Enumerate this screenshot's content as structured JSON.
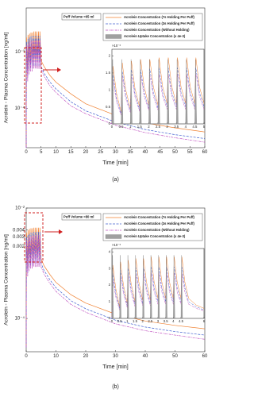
{
  "chart_data": [
    {
      "type": "line",
      "caption": "(a)",
      "annotation": "Puff Volume =65 ml",
      "x_label": "Time [min]",
      "y_label": "Acrolein - Plasma Concentration [ng/ml]",
      "log_y": true,
      "x": [
        0,
        0.1,
        0.5,
        0.6,
        1,
        1.1,
        1.5,
        1.6,
        2,
        2.1,
        2.5,
        2.6,
        3,
        3.1,
        3.5,
        3.6,
        4,
        4.1,
        4.5,
        4.6,
        5,
        6,
        8,
        10,
        15,
        20,
        30,
        40,
        50,
        60
      ],
      "xlim": [
        0,
        60
      ],
      "xticks": [
        0,
        5,
        10,
        15,
        20,
        25,
        30,
        35,
        40,
        45,
        50,
        55,
        60
      ],
      "ylim": [
        2e-05,
        0.006
      ],
      "yticks": [
        {
          "value": 0.001,
          "label": "10⁻³"
        },
        {
          "value": 0.0001,
          "label": "10⁻⁴"
        }
      ],
      "series": [
        {
          "color": "#f08030",
          "dash": "solid",
          "values": [
            2e-05,
            0.0018,
            0.0004,
            0.002,
            0.0005,
            0.0021,
            0.0006,
            0.0022,
            0.0006,
            0.0022,
            0.0007,
            0.0023,
            0.0007,
            0.0023,
            0.0007,
            0.0023,
            0.0007,
            0.0023,
            0.0007,
            0.0023,
            0.0007,
            0.00055,
            0.00038,
            0.00029,
            0.00018,
            0.00012,
            7.5e-05,
            5.5e-05,
            4.5e-05,
            3.8e-05
          ]
        },
        {
          "color": "#4060d0",
          "dash": "dashed",
          "values": [
            2e-05,
            0.0015,
            0.00035,
            0.0017,
            0.00045,
            0.0018,
            0.0005,
            0.0019,
            0.0005,
            0.0019,
            0.00055,
            0.0019,
            0.00055,
            0.0019,
            0.00055,
            0.0019,
            0.00055,
            0.0019,
            0.00055,
            0.0019,
            0.00055,
            0.00042,
            0.00029,
            0.00022,
            0.00013,
            9e-05,
            5.7e-05,
            4.2e-05,
            3.4e-05,
            2.9e-05
          ]
        },
        {
          "color": "#c050c0",
          "dash": "dashdot",
          "values": [
            2e-05,
            0.0013,
            0.0003,
            0.0014,
            0.0004,
            0.0015,
            0.00045,
            0.0016,
            0.00045,
            0.0016,
            0.0005,
            0.0016,
            0.0005,
            0.0016,
            0.0005,
            0.0016,
            0.0005,
            0.0016,
            0.0005,
            0.0016,
            0.0005,
            0.00037,
            0.00025,
            0.00019,
            0.00011,
            8e-05,
            5e-05,
            3.7e-05,
            3e-05,
            2.5e-05
          ]
        }
      ],
      "inset": {
        "type": "line",
        "y_multiplier": "×10⁻³",
        "x": [
          0,
          0.06,
          0.25,
          0.5,
          0.56,
          0.75,
          1,
          1.06,
          1.25,
          1.5,
          1.56,
          1.75,
          2,
          2.06,
          2.25,
          2.5,
          2.56,
          2.75,
          3,
          3.06,
          3.25,
          3.5,
          3.56,
          3.75,
          4,
          4.06,
          4.25,
          4.5,
          4.56,
          4.75,
          5
        ],
        "xlim": [
          0,
          5
        ],
        "xticks": [
          0,
          0.5,
          1,
          1.5,
          2,
          2.5,
          3,
          3.5,
          4,
          4.5,
          5
        ],
        "ylim": [
          0,
          2.2
        ],
        "yticks": [
          0,
          0.5,
          1,
          1.5,
          2
        ],
        "series": [
          {
            "name": "Acrolein Concentration (7s Holding Per Puff)",
            "color": "#f08030",
            "dash": "solid",
            "values": [
              0,
              1.7,
              0.9,
              0.35,
              1.8,
              1.0,
              0.45,
              1.85,
              1.05,
              0.5,
              1.9,
              1.1,
              0.55,
              1.9,
              1.1,
              0.55,
              1.95,
              1.1,
              0.6,
              1.95,
              1.1,
              0.6,
              1.95,
              1.1,
              0.6,
              1.95,
              1.1,
              0.6,
              1.95,
              1.1,
              0.6
            ]
          },
          {
            "name": "Acrolein Concentration (3s Holding Per Puff)",
            "color": "#4060d0",
            "dash": "dashed",
            "values": [
              0,
              1.45,
              0.75,
              0.3,
              1.55,
              0.85,
              0.38,
              1.6,
              0.9,
              0.42,
              1.6,
              0.93,
              0.46,
              1.62,
              0.93,
              0.46,
              1.65,
              0.93,
              0.5,
              1.65,
              0.93,
              0.5,
              1.65,
              0.93,
              0.5,
              1.65,
              0.93,
              0.5,
              1.65,
              0.93,
              0.5
            ]
          },
          {
            "name": "Acrolein Concentration (Without Holding)",
            "color": "#c050c0",
            "dash": "dashdot",
            "values": [
              0,
              1.3,
              0.65,
              0.25,
              1.4,
              0.75,
              0.33,
              1.42,
              0.8,
              0.37,
              1.45,
              0.82,
              0.4,
              1.45,
              0.82,
              0.4,
              1.47,
              0.82,
              0.43,
              1.47,
              0.82,
              0.43,
              1.47,
              0.82,
              0.43,
              1.47,
              0.82,
              0.43,
              1.47,
              0.82,
              0.43
            ]
          },
          {
            "name": "Acrolein Uptake Concentration (x 4e-3)",
            "color": "#a0a0a0",
            "dash": "area",
            "x": [
              0,
              0.04,
              0.1,
              0.5,
              0.54,
              0.6,
              1,
              1.04,
              1.1,
              1.5,
              1.54,
              1.6,
              2,
              2.04,
              2.1,
              2.5,
              2.54,
              2.6,
              3,
              3.04,
              3.1,
              3.5,
              3.54,
              3.6,
              4,
              4.04,
              4.1,
              4.5,
              4.54,
              4.6
            ],
            "values": [
              0,
              1.9,
              0,
              0,
              1.9,
              0,
              0,
              1.9,
              0,
              0,
              1.9,
              0,
              0,
              1.9,
              0,
              0,
              1.9,
              0,
              0,
              1.9,
              0,
              0,
              1.9,
              0,
              0,
              1.9,
              0,
              0,
              1.9,
              0
            ]
          }
        ]
      }
    },
    {
      "type": "line",
      "caption": "(b)",
      "annotation": "Puff Volume =80 ml",
      "x_label": "Time [min]",
      "y_label": "Acrolein - Plasma Concentration [ng/ml]",
      "log_y": true,
      "x": [
        0,
        0.1,
        0.5,
        0.6,
        1,
        1.1,
        1.5,
        1.6,
        2,
        2.1,
        2.5,
        2.6,
        3,
        3.1,
        3.5,
        3.6,
        4,
        4.1,
        4.5,
        4.6,
        5,
        6,
        8,
        10,
        15,
        20,
        30,
        40,
        50,
        60
      ],
      "xlim": [
        0,
        60
      ],
      "xticks": [
        0,
        10,
        20,
        30,
        40,
        50,
        60
      ],
      "ylim": [
        2.5e-05,
        0.01
      ],
      "yticks": [
        {
          "value": 0.01,
          "label": "10⁻²"
        },
        0.004,
        0.003,
        0.002,
        {
          "value": 0.0001,
          "label": "10⁻⁴"
        }
      ],
      "series": [
        {
          "color": "#f08030",
          "dash": "solid",
          "values": [
            3e-05,
            0.0036,
            0.0008,
            0.004,
            0.001,
            0.0042,
            0.0011,
            0.0043,
            0.0011,
            0.0043,
            0.0012,
            0.0044,
            0.0012,
            0.0044,
            0.0012,
            0.0044,
            0.0012,
            0.0044,
            0.0012,
            0.0044,
            0.0012,
            0.0009,
            0.00062,
            0.00045,
            0.00027,
            0.00019,
            0.00012,
            9e-05,
            7.5e-05,
            6.5e-05
          ]
        },
        {
          "color": "#4060d0",
          "dash": "dashed",
          "values": [
            3e-05,
            0.003,
            0.00066,
            0.0033,
            0.00083,
            0.0035,
            0.0009,
            0.0036,
            0.0009,
            0.0036,
            0.001,
            0.0037,
            0.001,
            0.0037,
            0.001,
            0.0037,
            0.001,
            0.0037,
            0.001,
            0.0037,
            0.001,
            0.00074,
            0.0005,
            0.00036,
            0.00021,
            0.00015,
            9.3e-05,
            7e-05,
            5.8e-05,
            5e-05
          ]
        },
        {
          "color": "#c050c0",
          "dash": "dashdot",
          "values": [
            3e-05,
            0.0026,
            0.00058,
            0.0029,
            0.00072,
            0.003,
            0.0008,
            0.0031,
            0.0008,
            0.0031,
            0.00086,
            0.0032,
            0.00086,
            0.0032,
            0.00086,
            0.0032,
            0.00086,
            0.0032,
            0.00086,
            0.0032,
            0.00086,
            0.00064,
            0.00043,
            0.00031,
            0.00018,
            0.00013,
            8e-05,
            6e-05,
            5e-05,
            4.2e-05
          ]
        }
      ],
      "inset": {
        "type": "line",
        "y_multiplier": "×10⁻³",
        "x": [
          0,
          0.06,
          0.25,
          0.5,
          0.56,
          0.75,
          1,
          1.06,
          1.25,
          1.5,
          1.56,
          1.75,
          2,
          2.06,
          2.25,
          2.5,
          2.56,
          2.75,
          3,
          3.06,
          3.25,
          3.5,
          3.56,
          3.75,
          4,
          4.06,
          4.25,
          4.5,
          4.56,
          4.75,
          5,
          5.5,
          6
        ],
        "xlim": [
          0,
          6
        ],
        "xticks": [
          0,
          0.5,
          1,
          1.5,
          2,
          2.5,
          3,
          3.5,
          4,
          4.5,
          6
        ],
        "ylim": [
          0,
          4.2
        ],
        "yticks": [
          0,
          1,
          2,
          3,
          4
        ],
        "series": [
          {
            "name": "Acrolein Concentration (7s Holding Per Puff)",
            "color": "#f08030",
            "dash": "solid",
            "values": [
              0,
              3.2,
              1.8,
              0.7,
              3.4,
              2.0,
              0.9,
              3.5,
              2.1,
              1.0,
              3.6,
              2.2,
              1.1,
              3.6,
              2.2,
              1.1,
              3.7,
              2.2,
              1.2,
              3.7,
              2.2,
              1.2,
              3.7,
              2.2,
              1.2,
              3.7,
              2.2,
              1.2,
              3.7,
              2.2,
              1.2,
              0.8,
              0.6
            ]
          },
          {
            "name": "Acrolein Concentration (3s Holding Per Puff)",
            "color": "#4060d0",
            "dash": "dashed",
            "values": [
              0,
              2.7,
              1.5,
              0.6,
              2.9,
              1.7,
              0.75,
              3.0,
              1.8,
              0.85,
              3.05,
              1.85,
              0.9,
              3.05,
              1.85,
              0.9,
              3.1,
              1.85,
              1.0,
              3.1,
              1.85,
              1.0,
              3.1,
              1.85,
              1.0,
              3.1,
              1.85,
              1.0,
              3.1,
              1.85,
              1.0,
              0.7,
              0.5
            ]
          },
          {
            "name": "Acrolein Concentration (Without Holding)",
            "color": "#c050c0",
            "dash": "dashdot",
            "values": [
              0,
              2.4,
              1.3,
              0.5,
              2.6,
              1.5,
              0.65,
              2.65,
              1.55,
              0.72,
              2.7,
              1.6,
              0.78,
              2.7,
              1.6,
              0.78,
              2.75,
              1.6,
              0.85,
              2.75,
              1.6,
              0.85,
              2.75,
              1.6,
              0.85,
              2.75,
              1.6,
              0.85,
              2.75,
              1.6,
              0.85,
              0.6,
              0.45
            ]
          },
          {
            "name": "Acrolein Uptake Concentration (x 4e-3)",
            "color": "#a0a0a0",
            "dash": "area",
            "x": [
              0,
              0.04,
              0.1,
              0.5,
              0.54,
              0.6,
              1,
              1.04,
              1.1,
              1.5,
              1.54,
              1.6,
              2,
              2.04,
              2.1,
              2.5,
              2.54,
              2.6,
              3,
              3.04,
              3.1,
              3.5,
              3.54,
              3.6,
              4,
              4.04,
              4.1,
              4.5,
              4.54,
              4.6
            ],
            "values": [
              0,
              3.8,
              0,
              0,
              3.8,
              0,
              0,
              3.8,
              0,
              0,
              3.8,
              0,
              0,
              3.8,
              0,
              0,
              3.8,
              0,
              0,
              3.8,
              0,
              0,
              3.8,
              0,
              0,
              3.8,
              0,
              0,
              3.8,
              0
            ]
          }
        ]
      }
    }
  ]
}
